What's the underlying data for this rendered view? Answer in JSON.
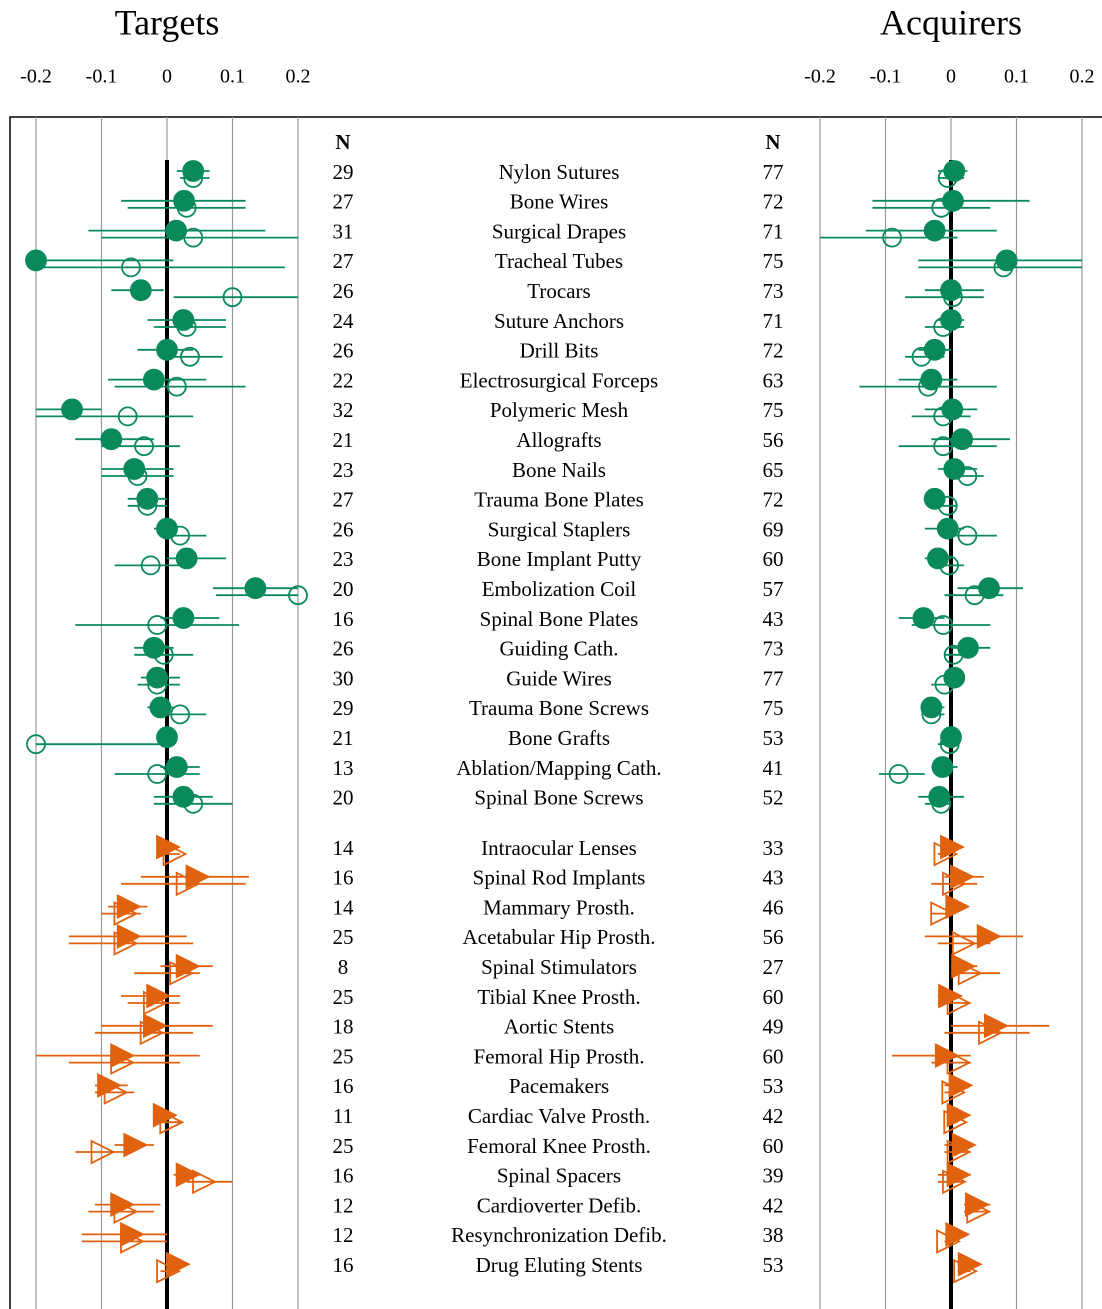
{
  "chart_data": {
    "type": "forest",
    "xlim": [
      -0.2,
      0.2
    ],
    "xticks": [
      -0.2,
      -0.1,
      0,
      0.1,
      0.2
    ],
    "n_label": "N",
    "groups": [
      {
        "color": "#0a8a5a",
        "marker": "circle",
        "categories": [
          "Nylon Sutures",
          "Bone Wires",
          "Surgical Drapes",
          "Tracheal Tubes",
          "Trocars",
          "Suture Anchors",
          "Drill Bits",
          "Electrosurgical Forceps",
          "Polymeric Mesh",
          "Allografts",
          "Bone Nails",
          "Trauma Bone Plates",
          "Surgical Staplers",
          "Bone Implant Putty",
          "Embolization Coil",
          "Spinal Bone Plates",
          "Guiding Cath.",
          "Guide Wires",
          "Trauma Bone Screws",
          "Bone Grafts",
          "Ablation/Mapping Cath.",
          "Spinal Bone Screws"
        ]
      },
      {
        "color": "#e0620f",
        "marker": "triangle",
        "categories": [
          "Intraocular Lenses",
          "Spinal Rod Implants",
          "Mammary Prosth.",
          "Acetabular Hip Prosth.",
          "Spinal Stimulators",
          "Tibial Knee Prosth.",
          "Aortic Stents",
          "Femoral Hip Prosth.",
          "Pacemakers",
          "Cardiac Valve Prosth.",
          "Femoral Knee Prosth.",
          "Spinal Spacers",
          "Cardioverter Defib.",
          "Resynchronization Defib.",
          "Drug Eluting Stents"
        ]
      }
    ],
    "panels": [
      {
        "title": "Targets",
        "groups": [
          {
            "n": [
              29,
              27,
              31,
              27,
              26,
              24,
              26,
              22,
              32,
              21,
              23,
              27,
              26,
              23,
              20,
              16,
              26,
              30,
              29,
              21,
              13,
              20
            ],
            "series": [
              {
                "fill": true,
                "values": [
                  0.04,
                  0.026,
                  0.014,
                  -0.2,
                  -0.04,
                  0.025,
                  0,
                  -0.02,
                  -0.145,
                  -0.085,
                  -0.05,
                  -0.03,
                  0,
                  0.03,
                  0.135,
                  0.025,
                  -0.02,
                  -0.015,
                  -0.01,
                  0,
                  0.015,
                  0.025
                ],
                "lower": [
                  0.015,
                  -0.07,
                  -0.12,
                  -0.2,
                  -0.085,
                  -0.03,
                  -0.045,
                  -0.09,
                  -0.2,
                  -0.14,
                  -0.1,
                  -0.06,
                  -0.02,
                  0,
                  0.07,
                  -0.01,
                  -0.05,
                  -0.04,
                  -0.03,
                  -0.01,
                  -0.01,
                  -0.02
                ],
                "upper": [
                  0.065,
                  0.12,
                  0.15,
                  0.01,
                  -0.005,
                  0.09,
                  0.04,
                  0.06,
                  -0.1,
                  -0.02,
                  0.01,
                  0,
                  0.01,
                  0.09,
                  0.2,
                  0.08,
                  0.01,
                  0.02,
                  0.01,
                  0.01,
                  0.05,
                  0.07
                ]
              },
              {
                "fill": false,
                "values": [
                  0.04,
                  0.03,
                  0.04,
                  -0.055,
                  0.1,
                  0.03,
                  0.035,
                  0.015,
                  -0.06,
                  -0.035,
                  -0.045,
                  -0.03,
                  0.02,
                  -0.025,
                  0.2,
                  -0.015,
                  -0.005,
                  -0.015,
                  0.02,
                  -0.2,
                  -0.015,
                  0.04
                ],
                "lower": [
                  0.02,
                  -0.06,
                  -0.1,
                  -0.2,
                  0.01,
                  -0.02,
                  -0.01,
                  -0.08,
                  -0.2,
                  -0.1,
                  -0.1,
                  -0.06,
                  -0.01,
                  -0.08,
                  0.075,
                  -0.14,
                  -0.05,
                  -0.045,
                  -0.02,
                  -0.2,
                  -0.08,
                  -0.02
                ],
                "upper": [
                  0.065,
                  0.12,
                  0.2,
                  0.18,
                  0.2,
                  0.09,
                  0.085,
                  0.12,
                  0.04,
                  0.02,
                  0.01,
                  0,
                  0.06,
                  0.02,
                  0.2,
                  0.11,
                  0.04,
                  0.02,
                  0.06,
                  0,
                  0.05,
                  0.1
                ]
              }
            ]
          },
          {
            "n": [
              14,
              16,
              14,
              25,
              8,
              25,
              18,
              25,
              16,
              11,
              25,
              16,
              12,
              12,
              16
            ],
            "series": [
              {
                "fill": true,
                "values": [
                  0,
                  0.045,
                  -0.06,
                  -0.06,
                  0.03,
                  -0.015,
                  -0.02,
                  -0.07,
                  -0.09,
                  -0.005,
                  -0.05,
                  0.03,
                  -0.07,
                  -0.055,
                  0.015
                ],
                "lower": [
                  -0.01,
                  -0.04,
                  -0.09,
                  -0.15,
                  -0.01,
                  -0.07,
                  -0.1,
                  -0.2,
                  -0.11,
                  -0.01,
                  -0.08,
                  0.01,
                  -0.11,
                  -0.13,
                  0
                ],
                "upper": [
                  0.01,
                  0.125,
                  -0.03,
                  0.03,
                  0.07,
                  0.02,
                  0.07,
                  0.05,
                  -0.06,
                  0.01,
                  -0.02,
                  0.05,
                  -0.01,
                  0,
                  0.03
                ]
              },
              {
                "fill": false,
                "values": [
                  0.01,
                  0.03,
                  -0.065,
                  -0.065,
                  0.02,
                  -0.02,
                  -0.025,
                  -0.07,
                  -0.08,
                  0.005,
                  -0.1,
                  0.055,
                  -0.065,
                  -0.055,
                  0
                ],
                "lower": [
                  -0.01,
                  -0.07,
                  -0.1,
                  -0.15,
                  -0.05,
                  -0.06,
                  -0.11,
                  -0.15,
                  -0.11,
                  -0.01,
                  -0.14,
                  0.03,
                  -0.12,
                  -0.13,
                  -0.01
                ],
                "upper": [
                  0.02,
                  0.12,
                  -0.04,
                  0.04,
                  0.05,
                  0.02,
                  0.04,
                  0.02,
                  -0.05,
                  0.02,
                  -0.06,
                  0.1,
                  -0.02,
                  0,
                  0.01
                ]
              }
            ]
          }
        ]
      },
      {
        "title": "Acquirers",
        "groups": [
          {
            "n": [
              77,
              72,
              71,
              75,
              73,
              71,
              72,
              63,
              75,
              56,
              65,
              72,
              69,
              60,
              57,
              43,
              73,
              77,
              75,
              53,
              41,
              52
            ],
            "series": [
              {
                "fill": true,
                "values": [
                  0.005,
                  0.003,
                  -0.025,
                  0.085,
                  0,
                  0,
                  -0.025,
                  -0.03,
                  0.002,
                  0.017,
                  0.005,
                  -0.025,
                  -0.005,
                  -0.02,
                  0.058,
                  -0.042,
                  0.026,
                  0.005,
                  -0.03,
                  0,
                  -0.013,
                  -0.018
                ],
                "lower": [
                  -0.02,
                  -0.12,
                  -0.13,
                  -0.05,
                  -0.04,
                  -0.02,
                  -0.05,
                  -0.08,
                  -0.04,
                  -0.03,
                  -0.02,
                  -0.04,
                  -0.04,
                  -0.04,
                  0.01,
                  -0.08,
                  0,
                  -0.01,
                  -0.04,
                  -0.01,
                  -0.03,
                  -0.05
                ],
                "upper": [
                  0.025,
                  0.12,
                  0.07,
                  0.2,
                  0.05,
                  0.02,
                  0,
                  0.01,
                  0.04,
                  0.09,
                  0.04,
                  -0.01,
                  0.02,
                  0,
                  0.11,
                  -0.01,
                  0.06,
                  0.02,
                  -0.01,
                  0.01,
                  0.01,
                  0.02
                ]
              },
              {
                "fill": false,
                "values": [
                  -0.005,
                  -0.015,
                  -0.09,
                  0.08,
                  0.003,
                  -0.012,
                  -0.045,
                  -0.035,
                  -0.012,
                  -0.012,
                  0.025,
                  -0.005,
                  0.025,
                  -0.003,
                  0.036,
                  -0.012,
                  0.004,
                  -0.01,
                  -0.03,
                  -0.002,
                  -0.08,
                  -0.015
                ],
                "lower": [
                  -0.02,
                  -0.12,
                  -0.2,
                  -0.05,
                  -0.07,
                  -0.04,
                  -0.07,
                  -0.14,
                  -0.06,
                  -0.08,
                  0,
                  -0.02,
                  0,
                  -0.02,
                  -0.01,
                  -0.06,
                  -0.01,
                  -0.03,
                  -0.04,
                  -0.02,
                  -0.11,
                  -0.04
                ],
                "upper": [
                  0.02,
                  0.06,
                  0.01,
                  0.2,
                  0.05,
                  0.02,
                  -0.01,
                  0.07,
                  0.03,
                  0.07,
                  0.05,
                  0.01,
                  0.07,
                  0.02,
                  0.08,
                  0.06,
                  0.02,
                  0.01,
                  -0.01,
                  0.01,
                  -0.04,
                  0
                ]
              }
            ]
          },
          {
            "n": [
              33,
              43,
              46,
              56,
              27,
              60,
              49,
              60,
              53,
              42,
              60,
              39,
              42,
              38,
              53
            ],
            "series": [
              {
                "fill": true,
                "values": [
                  0,
                  0.015,
                  0.008,
                  0.056,
                  0.017,
                  -0.003,
                  0.067,
                  -0.008,
                  0.013,
                  0.01,
                  0.018,
                  0.01,
                  0.038,
                  0.008,
                  0.027
                ],
                "lower": [
                  -0.01,
                  -0.01,
                  0,
                  -0.04,
                  0,
                  -0.02,
                  0,
                  -0.09,
                  -0.01,
                  0,
                  -0.01,
                  -0.02,
                  0.02,
                  -0.01,
                  0.01
                ],
                "upper": [
                  0.01,
                  0.05,
                  0.01,
                  0.11,
                  0.04,
                  0.01,
                  0.15,
                  0.03,
                  0.03,
                  0.02,
                  0.03,
                  0.03,
                  0.06,
                  0.02,
                  0.04
                ]
              },
              {
                "fill": false,
                "values": [
                  -0.01,
                  0.003,
                  -0.015,
                  0.018,
                  0.027,
                  0.01,
                  0.058,
                  0.01,
                  0.002,
                  0.005,
                  0.01,
                  0.003,
                  0.04,
                  -0.006,
                  0.02
                ],
                "lower": [
                  -0.02,
                  -0.03,
                  -0.03,
                  -0.02,
                  0,
                  -0.02,
                  -0.01,
                  -0.03,
                  -0.01,
                  0,
                  -0.01,
                  -0.02,
                  0.02,
                  -0.01,
                  0.01
                ],
                "upper": [
                  0,
                  0.04,
                  0,
                  0.06,
                  0.075,
                  0.03,
                  0.12,
                  0.03,
                  0.01,
                  0.01,
                  0.03,
                  0.02,
                  0.06,
                  0,
                  0.03
                ]
              }
            ]
          }
        ]
      }
    ]
  }
}
